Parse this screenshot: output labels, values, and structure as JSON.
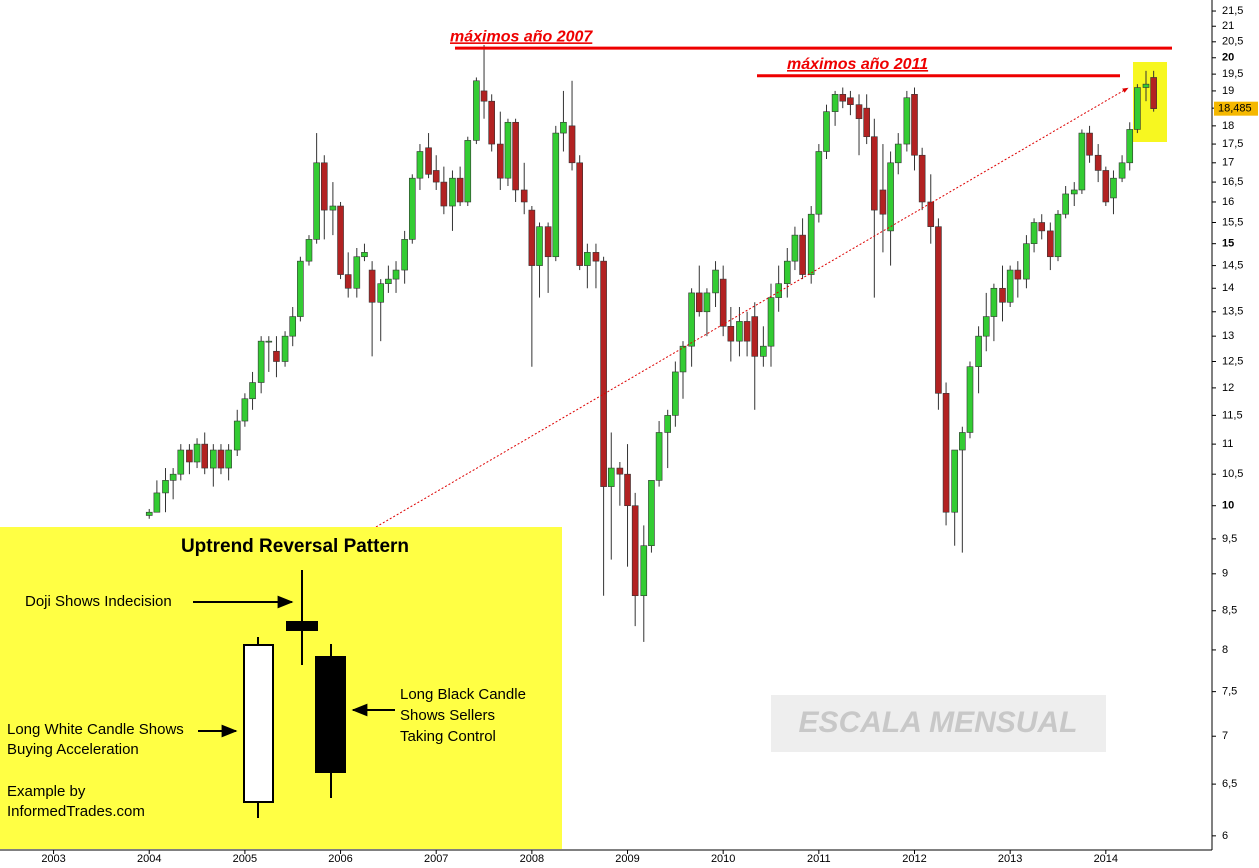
{
  "chart_data": {
    "type": "candlestick",
    "log_scale": true,
    "up_color": "#33cc33",
    "down_color": "#b22222",
    "xlim": [
      2002.44,
      2015.11
    ],
    "ylim": [
      5.87,
      21.87
    ],
    "xticks": [
      2003,
      2004,
      2005,
      2006,
      2007,
      2008,
      2009,
      2010,
      2011,
      2012,
      2013,
      2014
    ],
    "yticks": [
      6,
      {
        "value": 6.5,
        "label": "6,5"
      },
      7,
      {
        "value": 7.5,
        "label": "7,5"
      },
      8,
      {
        "value": 8.5,
        "label": "8,5"
      },
      9,
      {
        "value": 9.5,
        "label": "9,5"
      },
      10,
      {
        "value": 10.5,
        "label": "10,5"
      },
      11,
      {
        "value": 11.5,
        "label": "11,5"
      },
      12,
      {
        "value": 12.5,
        "label": "12,5"
      },
      13,
      {
        "value": 13.5,
        "label": "13,5"
      },
      14,
      {
        "value": 14.5,
        "label": "14,5"
      },
      15,
      {
        "value": 15.5,
        "label": "15,5"
      },
      16,
      {
        "value": 16.5,
        "label": "16,5"
      },
      17,
      {
        "value": 17.5,
        "label": "17,5"
      },
      18,
      {
        "value": 18.5,
        "label": "18,5"
      },
      19,
      {
        "value": 19.5,
        "label": "19,5"
      },
      20,
      {
        "value": 20.5,
        "label": "20,5"
      },
      21,
      {
        "value": 21.5,
        "label": "21,5"
      }
    ],
    "x": [
      2004,
      2004.08,
      2004.17,
      2004.25,
      2004.33,
      2004.42,
      2004.5,
      2004.58,
      2004.67,
      2004.75,
      2004.83,
      2004.92,
      2005,
      2005.08,
      2005.17,
      2005.25,
      2005.33,
      2005.42,
      2005.5,
      2005.58,
      2005.67,
      2005.75,
      2005.83,
      2005.92,
      2006,
      2006.08,
      2006.17,
      2006.25,
      2006.33,
      2006.42,
      2006.5,
      2006.58,
      2006.67,
      2006.75,
      2006.83,
      2006.92,
      2007,
      2007.08,
      2007.17,
      2007.25,
      2007.33,
      2007.42,
      2007.5,
      2007.58,
      2007.67,
      2007.75,
      2007.83,
      2007.92,
      2008,
      2008.08,
      2008.17,
      2008.25,
      2008.33,
      2008.42,
      2008.5,
      2008.58,
      2008.67,
      2008.75,
      2008.83,
      2008.92,
      2009,
      2009.08,
      2009.17,
      2009.25,
      2009.33,
      2009.42,
      2009.5,
      2009.58,
      2009.67,
      2009.75,
      2009.83,
      2009.92,
      2010,
      2010.08,
      2010.17,
      2010.25,
      2010.33,
      2010.42,
      2010.5,
      2010.58,
      2010.67,
      2010.75,
      2010.83,
      2010.92,
      2011,
      2011.08,
      2011.17,
      2011.25,
      2011.33,
      2011.42,
      2011.5,
      2011.58,
      2011.67,
      2011.75,
      2011.83,
      2011.92,
      2012,
      2012.08,
      2012.17,
      2012.25,
      2012.33,
      2012.42,
      2012.5,
      2012.58,
      2012.67,
      2012.75,
      2012.83,
      2012.92,
      2013,
      2013.08,
      2013.17,
      2013.25,
      2013.33,
      2013.42,
      2013.5,
      2013.58,
      2013.67,
      2013.75,
      2013.83,
      2013.92,
      2014,
      2014.08,
      2014.17,
      2014.25,
      2014.33,
      2014.42,
      2014.5
    ],
    "open": [
      9.85,
      9.9,
      10.2,
      10.4,
      10.5,
      10.9,
      10.7,
      11.0,
      10.6,
      10.9,
      10.6,
      10.9,
      11.4,
      11.8,
      12.1,
      12.9,
      12.7,
      12.5,
      13.0,
      13.4,
      14.6,
      15.1,
      17.0,
      15.8,
      15.9,
      14.3,
      14.0,
      14.7,
      14.4,
      13.7,
      14.1,
      14.2,
      14.4,
      15.1,
      16.6,
      17.4,
      16.8,
      16.5,
      15.9,
      16.6,
      16.0,
      17.6,
      19.0,
      18.7,
      17.5,
      16.6,
      18.1,
      16.3,
      15.8,
      14.5,
      15.4,
      14.7,
      17.8,
      18.0,
      17.0,
      14.5,
      14.8,
      14.6,
      10.3,
      10.6,
      10.5,
      10.0,
      8.7,
      9.4,
      10.4,
      11.2,
      11.5,
      12.3,
      12.8,
      13.9,
      13.5,
      13.9,
      14.2,
      13.2,
      12.9,
      13.3,
      13.4,
      12.6,
      12.8,
      13.8,
      14.1,
      14.6,
      15.2,
      14.3,
      15.7,
      17.3,
      18.4,
      18.9,
      18.8,
      18.6,
      18.5,
      17.7,
      16.3,
      15.3,
      17.0,
      17.5,
      18.9,
      17.2,
      16.0,
      15.4,
      11.9,
      9.9,
      10.9,
      11.2,
      12.4,
      13.0,
      13.4,
      14.0,
      13.7,
      14.4,
      14.2,
      15.0,
      15.5,
      15.3,
      14.7,
      15.7,
      16.2,
      16.3,
      17.8,
      17.2,
      16.8,
      16.1,
      16.6,
      17.0,
      17.9,
      19.1,
      19.4
    ],
    "high": [
      9.95,
      10.4,
      10.6,
      10.6,
      11.0,
      11.0,
      11.1,
      11.2,
      11.0,
      11.0,
      11.0,
      11.6,
      11.9,
      12.3,
      13.0,
      13.0,
      13.0,
      13.1,
      13.6,
      14.7,
      15.2,
      17.8,
      17.2,
      16.5,
      16.0,
      14.8,
      14.9,
      15.0,
      14.6,
      14.2,
      14.5,
      14.6,
      15.3,
      16.7,
      17.5,
      17.8,
      17.2,
      16.9,
      16.8,
      16.9,
      17.7,
      19.4,
      20.4,
      18.9,
      18.4,
      18.2,
      18.2,
      17.0,
      15.9,
      15.5,
      15.5,
      18.0,
      19.0,
      19.3,
      17.2,
      15.0,
      15.0,
      14.7,
      11.2,
      10.7,
      11.0,
      10.2,
      9.7,
      10.4,
      11.4,
      11.6,
      12.5,
      12.9,
      14.0,
      14.5,
      14.0,
      14.6,
      14.5,
      13.6,
      13.6,
      13.5,
      13.7,
      13.2,
      14.1,
      14.5,
      14.9,
      15.4,
      15.6,
      15.9,
      17.5,
      18.6,
      19.0,
      19.1,
      19.0,
      18.9,
      18.9,
      18.2,
      17.5,
      17.3,
      17.8,
      19.0,
      19.1,
      17.4,
      16.7,
      15.6,
      12.1,
      10.9,
      11.3,
      12.5,
      13.2,
      13.9,
      14.1,
      14.5,
      14.5,
      14.6,
      15.2,
      15.6,
      15.7,
      15.5,
      15.8,
      16.4,
      16.5,
      17.9,
      18.0,
      17.5,
      16.9,
      16.8,
      17.2,
      18.1,
      19.2,
      19.6,
      19.6
    ],
    "low": [
      9.8,
      9.9,
      9.9,
      10.1,
      10.4,
      10.5,
      10.6,
      10.5,
      10.3,
      10.5,
      10.4,
      10.8,
      11.3,
      11.6,
      11.9,
      12.3,
      12.2,
      12.4,
      12.8,
      13.3,
      14.5,
      15.0,
      15.1,
      15.2,
      14.2,
      13.8,
      13.8,
      14.6,
      12.6,
      12.9,
      13.9,
      13.9,
      14.1,
      15.0,
      16.3,
      16.6,
      16.3,
      15.7,
      15.3,
      15.9,
      15.9,
      17.5,
      18.2,
      17.3,
      16.3,
      16.4,
      16.0,
      15.7,
      12.4,
      13.8,
      13.9,
      14.6,
      17.3,
      16.8,
      14.4,
      14.0,
      14.0,
      8.7,
      9.2,
      10.0,
      9.1,
      8.3,
      8.1,
      9.3,
      10.3,
      10.6,
      11.3,
      11.8,
      12.4,
      13.4,
      13.0,
      13.6,
      13.0,
      12.5,
      12.6,
      12.6,
      11.6,
      12.4,
      12.4,
      13.5,
      13.8,
      14.4,
      14.2,
      14.1,
      15.5,
      17.1,
      18.0,
      18.5,
      18.3,
      17.2,
      17.5,
      13.8,
      14.8,
      14.5,
      16.7,
      17.3,
      16.8,
      15.8,
      15.0,
      11.6,
      9.7,
      9.4,
      9.3,
      11.1,
      11.9,
      12.7,
      12.9,
      13.3,
      13.6,
      13.8,
      14.0,
      14.8,
      15.1,
      14.4,
      14.6,
      15.6,
      15.9,
      16.2,
      17.0,
      16.5,
      15.9,
      15.7,
      16.5,
      16.8,
      17.8,
      18.7,
      18.4
    ],
    "close": [
      9.9,
      10.2,
      10.4,
      10.5,
      10.9,
      10.7,
      11.0,
      10.6,
      10.9,
      10.6,
      10.9,
      11.4,
      11.8,
      12.1,
      12.9,
      12.9,
      12.5,
      13.0,
      13.4,
      14.6,
      15.1,
      17.0,
      15.8,
      15.9,
      14.3,
      14.0,
      14.7,
      14.8,
      13.7,
      14.1,
      14.2,
      14.4,
      15.1,
      16.6,
      17.3,
      16.7,
      16.5,
      15.9,
      16.6,
      16.0,
      17.6,
      19.3,
      18.7,
      17.5,
      16.6,
      18.1,
      16.3,
      16.0,
      14.5,
      15.4,
      14.7,
      17.8,
      18.1,
      17.0,
      14.5,
      14.8,
      14.6,
      10.3,
      10.6,
      10.5,
      10.0,
      8.7,
      9.4,
      10.4,
      11.2,
      11.5,
      12.3,
      12.8,
      13.9,
      13.5,
      13.9,
      14.4,
      13.2,
      12.9,
      13.3,
      12.9,
      12.6,
      12.8,
      13.8,
      14.1,
      14.6,
      15.2,
      14.3,
      15.7,
      17.3,
      18.4,
      18.9,
      18.7,
      18.6,
      18.2,
      17.7,
      15.8,
      15.7,
      17.0,
      17.5,
      18.8,
      17.2,
      16.0,
      15.4,
      11.9,
      9.9,
      10.9,
      11.2,
      12.4,
      13.0,
      13.4,
      14.0,
      13.7,
      14.4,
      14.2,
      15.0,
      15.5,
      15.3,
      14.7,
      15.7,
      16.2,
      16.3,
      17.8,
      17.2,
      16.8,
      16.0,
      16.6,
      17.0,
      17.9,
      19.1,
      19.2,
      18.485
    ],
    "last_price": {
      "value": 18.485,
      "label": "18,485"
    },
    "annotations": [
      {
        "text": "máximos año 2007",
        "value": 20.3
      },
      {
        "text": "máximos año 2011",
        "value": 19.45
      }
    ],
    "watermark": "ESCALA MENSUAL"
  },
  "inset": {
    "title": "Uptrend Reversal Pattern",
    "doji_text": "Doji Shows Indecision",
    "white_candle_text": [
      "Long White Candle Shows",
      "Buying Acceleration"
    ],
    "black_candle_text": [
      "Long Black Candle",
      "Shows Sellers",
      "Taking Control"
    ],
    "credit": [
      "Example by",
      "InformedTrades.com"
    ]
  }
}
